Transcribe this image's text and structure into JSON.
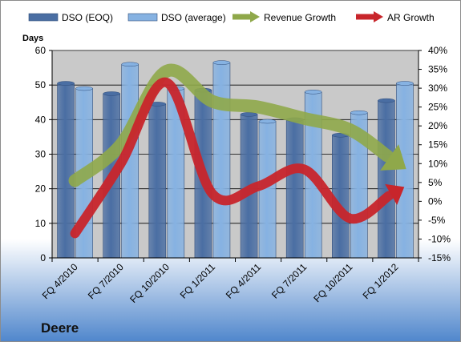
{
  "chart_data": {
    "type": "bar",
    "company": "Deere",
    "ylabel": "Days",
    "categories": [
      "FQ 4/2010",
      "FQ 7/2010",
      "FQ 10/2010",
      "FQ 1/2011",
      "FQ 4/2011",
      "FQ 7/2011",
      "FQ 10/2011",
      "FQ 1/2012"
    ],
    "ylim": [
      0,
      60
    ],
    "y2lim": [
      -15,
      40
    ],
    "y_ticks": [
      "0",
      "10",
      "20",
      "30",
      "40",
      "50",
      "60"
    ],
    "y2_ticks": [
      "-15%",
      "-10%",
      "-5%",
      "0%",
      "5%",
      "10%",
      "15%",
      "20%",
      "25%",
      "30%",
      "35%",
      "40%"
    ],
    "series": [
      {
        "name": "DSO (EOQ)",
        "kind": "bar",
        "axis": "left",
        "color": "#4a6ea3",
        "values": [
          50.5,
          47.5,
          44.5,
          48.5,
          41.5,
          40,
          35.5,
          45.5
        ]
      },
      {
        "name": "DSO (average)",
        "kind": "bar",
        "axis": "left",
        "color": "#86b2e2",
        "values": [
          49,
          56,
          49,
          56.5,
          39.5,
          48,
          42,
          50.5
        ]
      },
      {
        "name": "Revenue Growth",
        "kind": "arrow-line",
        "axis": "right",
        "color": "#8fa84a",
        "values": [
          5.5,
          15,
          34.5,
          26.5,
          25,
          22,
          19,
          10.5
        ]
      },
      {
        "name": "AR Growth",
        "kind": "arrow-line",
        "axis": "right",
        "color": "#c8252b",
        "values": [
          -8.5,
          10,
          31.5,
          2,
          4,
          8.5,
          -4.5,
          2.5
        ]
      }
    ],
    "colors": {
      "plot_bg": "#c9c9c9",
      "grid": "#000000",
      "banner_top": "#ffffff",
      "banner_bottom": "#4f86cc"
    },
    "grid": true,
    "legend_position": "top"
  }
}
